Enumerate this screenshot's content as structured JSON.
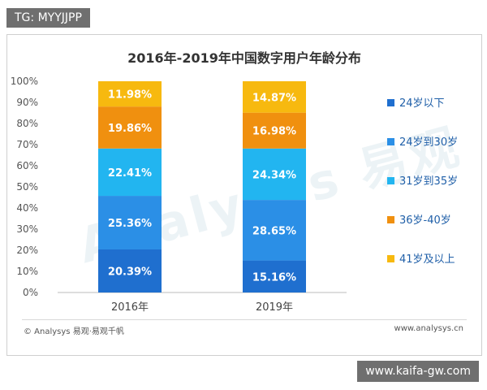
{
  "overlay": {
    "top_tag": "TG: MYYJJPP",
    "bottom_tag": "www.kaifa-gw.com"
  },
  "footer": {
    "source": "© Analysys 易观·易观千帆",
    "site": "www.analysys.cn"
  },
  "watermark": "Analysys 易观",
  "chart_data": {
    "type": "bar",
    "stacked": true,
    "title": "2016年-2019年中国数字用户年龄分布",
    "categories": [
      "2016年",
      "2019年"
    ],
    "y_ticks": [
      "0%",
      "10%",
      "20%",
      "30%",
      "40%",
      "50%",
      "60%",
      "70%",
      "80%",
      "90%",
      "100%"
    ],
    "ylim": [
      0,
      100
    ],
    "legend_position": "right",
    "series": [
      {
        "name": "24岁以下",
        "color": "#1f6fcf",
        "values": [
          20.39,
          15.16
        ],
        "labels": [
          "20.39%",
          "15.16%"
        ]
      },
      {
        "name": "24岁到30岁",
        "color": "#2b8fe6",
        "values": [
          25.36,
          28.65
        ],
        "labels": [
          "25.36%",
          "28.65%"
        ]
      },
      {
        "name": "31岁到35岁",
        "color": "#22b5f0",
        "values": [
          22.41,
          24.34
        ],
        "labels": [
          "22.41%",
          "24.34%"
        ]
      },
      {
        "name": "36岁-40岁",
        "color": "#f0900f",
        "values": [
          19.86,
          16.98
        ],
        "labels": [
          "19.86%",
          "16.98%"
        ]
      },
      {
        "name": "41岁及以上",
        "color": "#f7b90f",
        "values": [
          11.98,
          14.87
        ],
        "labels": [
          "11.98%",
          "14.87%"
        ]
      }
    ]
  }
}
